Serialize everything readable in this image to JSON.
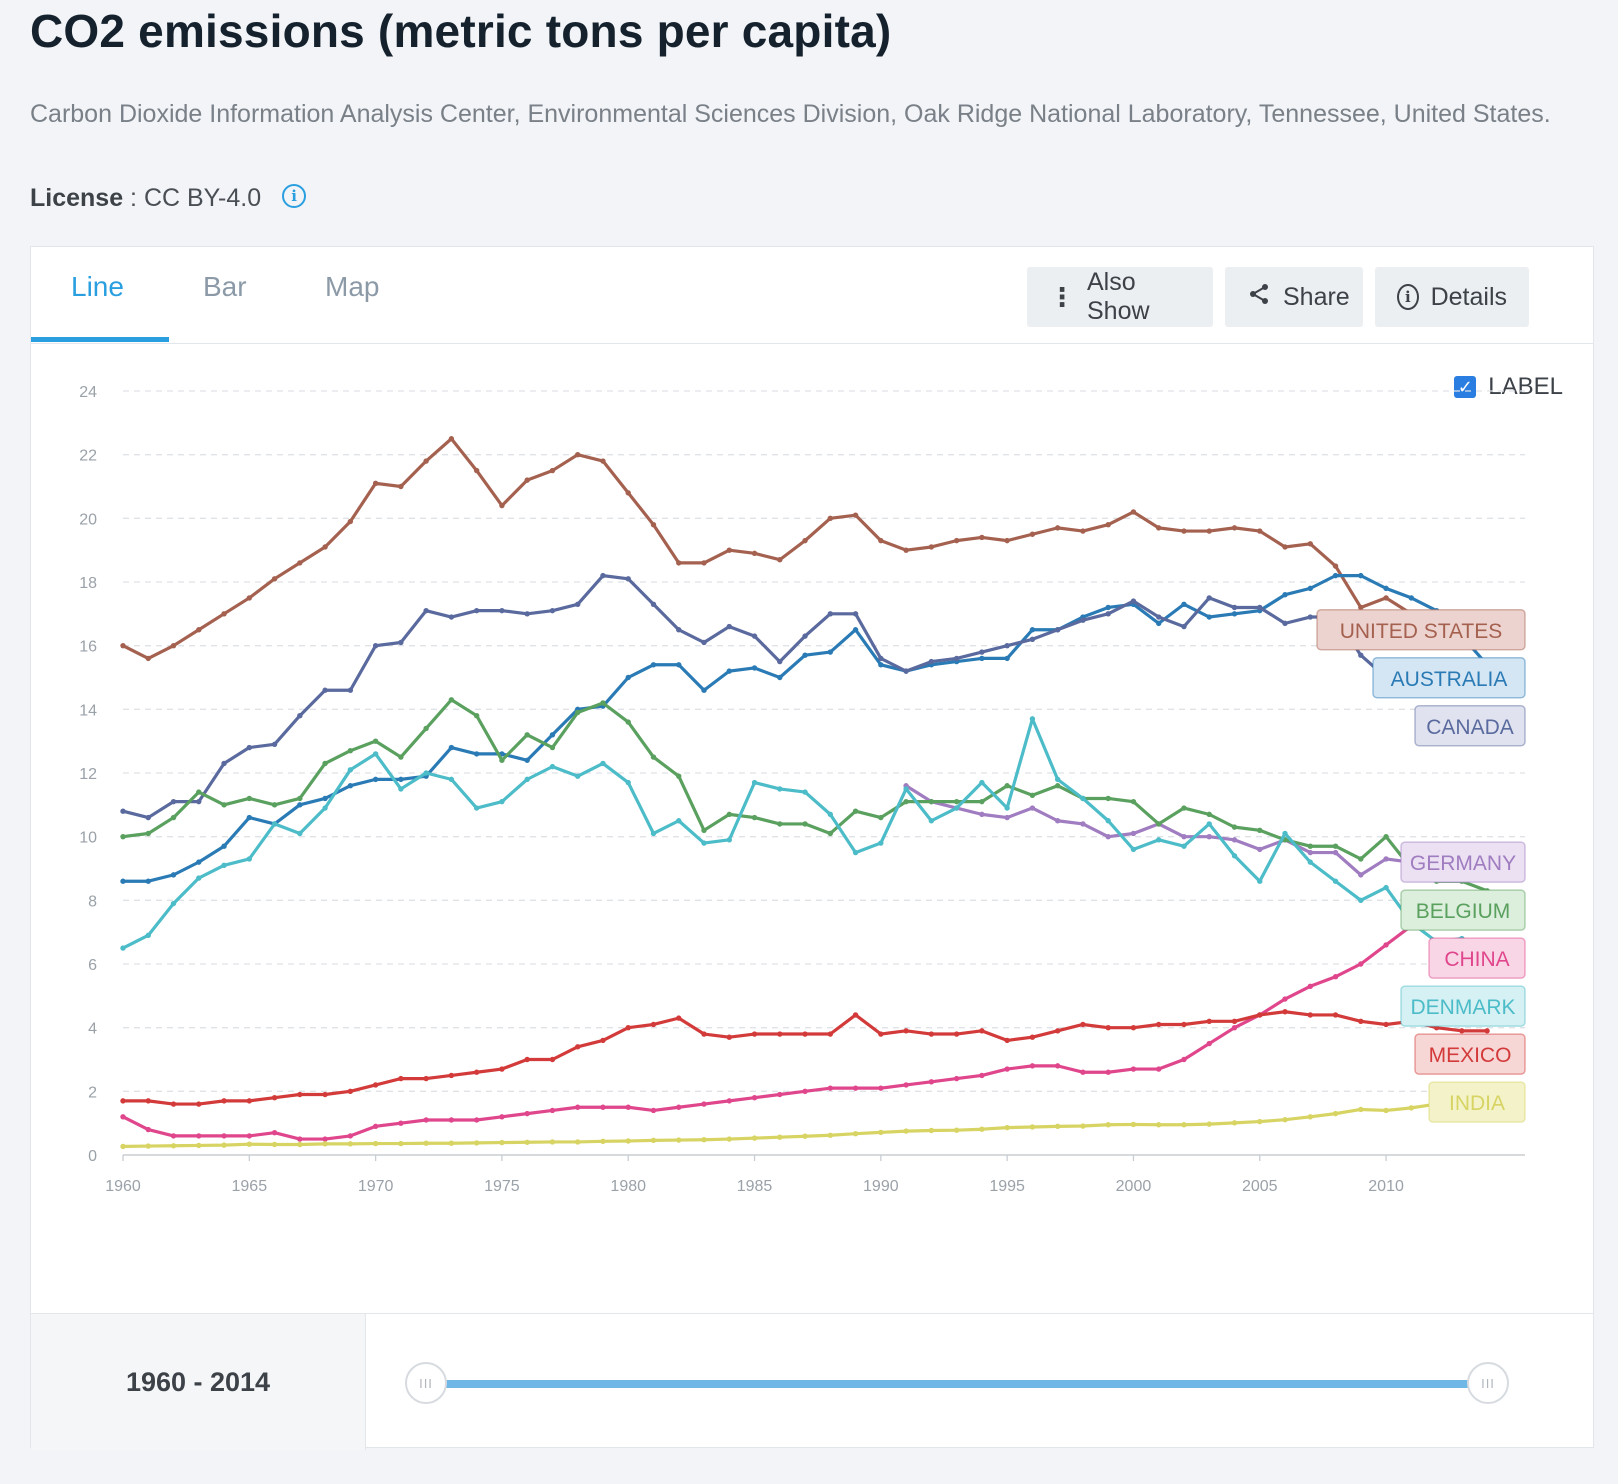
{
  "header": {
    "title": "CO2 emissions (metric tons per capita)",
    "source": "Carbon Dioxide Information Analysis Center, Environmental Sciences Division, Oak Ridge National Laboratory, Tennessee, United States.",
    "license_label": "License",
    "license_value": " : CC BY-4.0"
  },
  "tabs": [
    {
      "label": "Line",
      "active": true
    },
    {
      "label": "Bar",
      "active": false
    },
    {
      "label": "Map",
      "active": false
    }
  ],
  "toolbar": {
    "also_show": "Also Show",
    "share": "Share",
    "details": "Details"
  },
  "label_toggle": {
    "label": "LABEL",
    "checked": true
  },
  "range": {
    "text": "1960 - 2014",
    "start": 1960,
    "end": 2014
  },
  "colors": {
    "accent": "#2a9fe0"
  },
  "chart_data": {
    "type": "line",
    "ylim": [
      0,
      24
    ],
    "yticks": [
      0,
      2,
      4,
      6,
      8,
      10,
      12,
      14,
      16,
      18,
      20,
      22,
      24
    ],
    "xticks": [
      1960,
      1965,
      1970,
      1975,
      1980,
      1985,
      1990,
      1995,
      2000,
      2005,
      2010
    ],
    "grid": true,
    "x_start": 1960,
    "series": [
      {
        "name": "UNITED STATES",
        "color": "#a5614f",
        "fill": "#edd3cf",
        "start": 1960,
        "values": [
          16.0,
          15.6,
          16.0,
          16.5,
          17.0,
          17.5,
          18.1,
          18.6,
          19.1,
          19.9,
          21.1,
          21.0,
          21.8,
          22.5,
          21.5,
          20.4,
          21.2,
          21.5,
          22.0,
          21.8,
          20.8,
          19.8,
          18.6,
          18.6,
          19.0,
          18.9,
          18.7,
          19.3,
          20.0,
          20.1,
          19.3,
          19.0,
          19.1,
          19.3,
          19.4,
          19.3,
          19.5,
          19.7,
          19.6,
          19.8,
          20.2,
          19.7,
          19.6,
          19.6,
          19.7,
          19.6,
          19.1,
          19.2,
          18.5,
          17.2,
          17.5,
          17.0,
          16.3,
          16.4,
          16.5
        ]
      },
      {
        "name": "AUSTRALIA",
        "color": "#2a7bb5",
        "fill": "#d4e5f3",
        "start": 1960,
        "values": [
          8.6,
          8.6,
          8.8,
          9.2,
          9.7,
          10.6,
          10.4,
          11.0,
          11.2,
          11.6,
          11.8,
          11.8,
          11.9,
          12.8,
          12.6,
          12.6,
          12.4,
          13.2,
          14.0,
          14.1,
          15.0,
          15.4,
          15.4,
          14.6,
          15.2,
          15.3,
          15.0,
          15.7,
          15.8,
          16.5,
          15.4,
          15.2,
          15.4,
          15.5,
          15.6,
          15.6,
          16.5,
          16.5,
          16.9,
          17.2,
          17.3,
          16.7,
          17.3,
          16.9,
          17.0,
          17.1,
          17.6,
          17.8,
          18.2,
          18.2,
          17.8,
          17.5,
          17.1,
          16.3,
          15.4
        ]
      },
      {
        "name": "CANADA",
        "color": "#5a6a9e",
        "fill": "#e0e3ef",
        "start": 1960,
        "values": [
          10.8,
          10.6,
          11.1,
          11.1,
          12.3,
          12.8,
          12.9,
          13.8,
          14.6,
          14.6,
          16.0,
          16.1,
          17.1,
          16.9,
          17.1,
          17.1,
          17.0,
          17.1,
          17.3,
          18.2,
          18.1,
          17.3,
          16.5,
          16.1,
          16.6,
          16.3,
          15.5,
          16.3,
          17.0,
          17.0,
          15.6,
          15.2,
          15.5,
          15.6,
          15.8,
          16.0,
          16.2,
          16.5,
          16.8,
          17.0,
          17.4,
          16.9,
          16.6,
          17.5,
          17.2,
          17.2,
          16.7,
          16.9,
          16.9,
          15.7,
          15.0,
          14.8,
          14.6,
          14.6,
          15.1
        ]
      },
      {
        "name": "GERMANY",
        "color": "#a07cc0",
        "fill": "#ebe1f3",
        "start": 1991,
        "values": [
          11.6,
          11.1,
          10.9,
          10.7,
          10.6,
          10.9,
          10.5,
          10.4,
          10.0,
          10.1,
          10.4,
          10.0,
          10.0,
          9.9,
          9.6,
          9.9,
          9.5,
          9.5,
          8.8,
          9.3,
          9.2,
          9.0,
          9.3,
          9.2
        ]
      },
      {
        "name": "BELGIUM",
        "color": "#5aa05e",
        "fill": "#dcefdc",
        "start": 1960,
        "values": [
          10.0,
          10.1,
          10.6,
          11.4,
          11.0,
          11.2,
          11.0,
          11.2,
          12.3,
          12.7,
          13.0,
          12.5,
          13.4,
          14.3,
          13.8,
          12.4,
          13.2,
          12.8,
          13.9,
          14.2,
          13.6,
          12.5,
          11.9,
          10.2,
          10.7,
          10.6,
          10.4,
          10.4,
          10.1,
          10.8,
          10.6,
          11.1,
          11.1,
          11.1,
          11.1,
          11.6,
          11.3,
          11.6,
          11.2,
          11.2,
          11.1,
          10.4,
          10.9,
          10.7,
          10.3,
          10.2,
          9.9,
          9.7,
          9.7,
          9.3,
          10.0,
          9.0,
          8.6,
          8.6,
          8.3
        ]
      },
      {
        "name": "CHINA",
        "color": "#e0468c",
        "fill": "#f8d6e6",
        "start": 1960,
        "values": [
          1.2,
          0.8,
          0.6,
          0.6,
          0.6,
          0.6,
          0.7,
          0.5,
          0.5,
          0.6,
          0.9,
          1.0,
          1.1,
          1.1,
          1.1,
          1.2,
          1.3,
          1.4,
          1.5,
          1.5,
          1.5,
          1.4,
          1.5,
          1.6,
          1.7,
          1.8,
          1.9,
          2.0,
          2.1,
          2.1,
          2.1,
          2.2,
          2.3,
          2.4,
          2.5,
          2.7,
          2.8,
          2.8,
          2.6,
          2.6,
          2.7,
          2.7,
          3.0,
          3.5,
          4.0,
          4.4,
          4.9,
          5.3,
          5.6,
          6.0,
          6.6,
          7.2,
          7.4,
          7.6,
          7.5
        ]
      },
      {
        "name": "DENMARK",
        "color": "#4cbcc8",
        "fill": "#d6f1f3",
        "start": 1960,
        "values": [
          6.5,
          6.9,
          7.9,
          8.7,
          9.1,
          9.3,
          10.4,
          10.1,
          10.9,
          12.1,
          12.6,
          11.5,
          12.0,
          11.8,
          10.9,
          11.1,
          11.8,
          12.2,
          11.9,
          12.3,
          11.7,
          10.1,
          10.5,
          9.8,
          9.9,
          11.7,
          11.5,
          11.4,
          10.7,
          9.5,
          9.8,
          11.5,
          10.5,
          10.9,
          11.7,
          10.9,
          13.7,
          11.8,
          11.2,
          10.5,
          9.6,
          9.9,
          9.7,
          10.4,
          9.4,
          8.6,
          10.1,
          9.2,
          8.6,
          8.0,
          8.4,
          7.3,
          6.7,
          6.8,
          6.0
        ]
      },
      {
        "name": "MEXICO",
        "color": "#d33a3a",
        "fill": "#f6d7d6",
        "start": 1960,
        "values": [
          1.7,
          1.7,
          1.6,
          1.6,
          1.7,
          1.7,
          1.8,
          1.9,
          1.9,
          2.0,
          2.2,
          2.4,
          2.4,
          2.5,
          2.6,
          2.7,
          3.0,
          3.0,
          3.4,
          3.6,
          4.0,
          4.1,
          4.3,
          3.8,
          3.7,
          3.8,
          3.8,
          3.8,
          3.8,
          4.4,
          3.8,
          3.9,
          3.8,
          3.8,
          3.9,
          3.6,
          3.7,
          3.9,
          4.1,
          4.0,
          4.0,
          4.1,
          4.1,
          4.2,
          4.2,
          4.4,
          4.5,
          4.4,
          4.4,
          4.2,
          4.1,
          4.2,
          4.0,
          3.9,
          3.9
        ]
      },
      {
        "name": "INDIA",
        "color": "#d7d463",
        "fill": "#f3f2c9",
        "start": 1960,
        "values": [
          0.27,
          0.28,
          0.29,
          0.3,
          0.31,
          0.34,
          0.33,
          0.33,
          0.35,
          0.35,
          0.36,
          0.36,
          0.37,
          0.37,
          0.38,
          0.39,
          0.4,
          0.41,
          0.41,
          0.43,
          0.44,
          0.46,
          0.47,
          0.48,
          0.5,
          0.53,
          0.56,
          0.59,
          0.62,
          0.67,
          0.71,
          0.75,
          0.77,
          0.78,
          0.81,
          0.86,
          0.88,
          0.9,
          0.91,
          0.95,
          0.96,
          0.95,
          0.95,
          0.97,
          1.01,
          1.05,
          1.11,
          1.2,
          1.3,
          1.43,
          1.4,
          1.48,
          1.6,
          1.56,
          1.73
        ]
      }
    ]
  }
}
